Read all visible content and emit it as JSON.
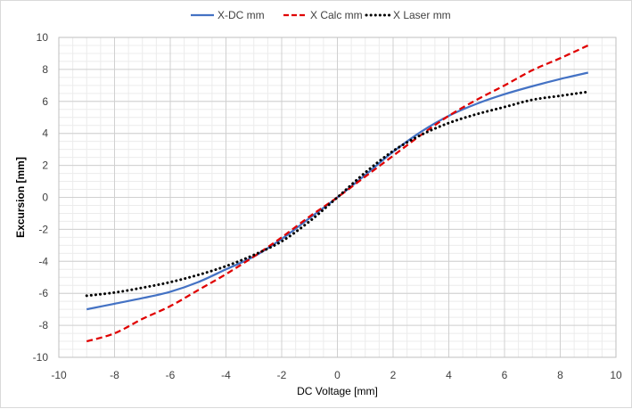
{
  "chart_data": {
    "type": "line",
    "title": "",
    "xlabel": "DC Voltage [mm]",
    "ylabel": "Excursion [mm]",
    "xlim": [
      -10,
      10
    ],
    "ylim": [
      -10,
      10
    ],
    "x_major_step": 2,
    "y_major_step": 2,
    "x_minor_step": 0.5,
    "y_minor_step": 0.5,
    "xticks": [
      "-10",
      "-8",
      "-6",
      "-4",
      "-2",
      "0",
      "2",
      "4",
      "6",
      "8",
      "10"
    ],
    "yticks": [
      "10",
      "8",
      "6",
      "4",
      "2",
      "0",
      "-2",
      "-4",
      "-6",
      "-8",
      "-10"
    ],
    "grid": true,
    "legend_position": "top",
    "series": [
      {
        "name": "X-DC mm",
        "color": "#4472c4",
        "style": "solid",
        "x": [
          -9,
          -8,
          -7,
          -6,
          -5,
          -4,
          -3,
          -2,
          -1,
          0,
          1,
          2,
          3,
          4,
          5,
          6,
          7,
          8,
          9
        ],
        "y": [
          -7.0,
          -6.65,
          -6.3,
          -5.9,
          -5.3,
          -4.5,
          -3.7,
          -2.6,
          -1.3,
          0,
          1.4,
          2.85,
          4.1,
          5.1,
          5.85,
          6.45,
          6.95,
          7.4,
          7.8
        ]
      },
      {
        "name": "X Calc mm",
        "color": "#e00000",
        "style": "dashed",
        "x": [
          -9,
          -8,
          -7,
          -6,
          -5,
          -4,
          -3,
          -2,
          -1,
          0,
          1,
          2,
          3,
          4,
          5,
          6,
          7,
          8,
          9
        ],
        "y": [
          -9.0,
          -8.5,
          -7.6,
          -6.8,
          -5.8,
          -4.8,
          -3.7,
          -2.5,
          -1.2,
          0,
          1.3,
          2.6,
          3.9,
          5.1,
          6.1,
          7.0,
          7.95,
          8.7,
          9.5
        ]
      },
      {
        "name": "X Laser mm",
        "color": "#000000",
        "style": "dotted",
        "x": [
          -9,
          -8,
          -7,
          -6,
          -5,
          -4,
          -3,
          -2,
          -1,
          0,
          1,
          2,
          3,
          4,
          5,
          6,
          7,
          8,
          9
        ],
        "y": [
          -6.15,
          -5.95,
          -5.65,
          -5.3,
          -4.85,
          -4.3,
          -3.6,
          -2.75,
          -1.5,
          0,
          1.55,
          2.9,
          3.9,
          4.65,
          5.2,
          5.65,
          6.1,
          6.35,
          6.6
        ]
      }
    ]
  }
}
